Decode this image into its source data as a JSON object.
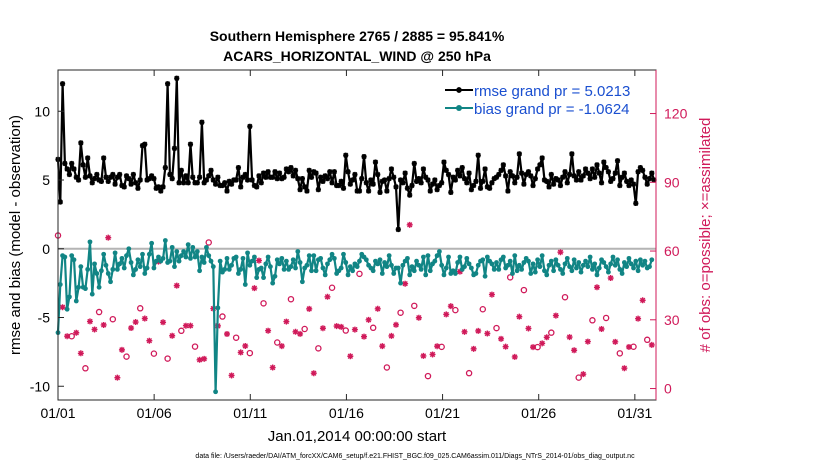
{
  "colors": {
    "rmse": "#000000",
    "bias": "#118585",
    "obs": "#d01a5a",
    "legend_text": "#1a4fd0",
    "zero_line": "#b4b4b4"
  },
  "chart_data": {
    "type": "line",
    "title_line1": "Southern Hemisphere 2765 / 2885 = 95.841%",
    "title_line2": "ACARS_HORIZONTAL_WIND @ 250 hPa",
    "xlabel": "Jan.01,2014 00:00:00 start",
    "ylabel_left": "rmse and bias (model - observation)",
    "ylabel_right": "# of obs: o=possible; ×=assimilated",
    "footnote": "data file: /Users/raeder/DAI/ATM_forcXX/CAM6_setup/f.e21.FHIST_BGC.f09_025.CAM6assim.011/Diags_NTrS_2014-01/obs_diag_output.nc",
    "xlim": [
      1,
      32.1
    ],
    "ylim_left": [
      -11,
      13
    ],
    "ylim_right": [
      -5,
      139
    ],
    "x_ticks": [
      1,
      6,
      11,
      16,
      21,
      26,
      31
    ],
    "x_tick_labels": [
      "01/01",
      "01/06",
      "01/11",
      "01/16",
      "01/21",
      "01/26",
      "01/31"
    ],
    "y_ticks_left": [
      -10,
      -5,
      0,
      5,
      10
    ],
    "y_tick_labels_left": [
      "-10",
      "-5",
      "0",
      "5",
      "10"
    ],
    "y_ticks_right": [
      0,
      30,
      60,
      90,
      120
    ],
    "y_tick_labels_right": [
      "0",
      "30",
      "60",
      "90",
      "120"
    ],
    "legend": {
      "placement": "top-right",
      "items": [
        "rmse grand pr = 5.0213",
        "bias grand pr = -1.0624"
      ]
    },
    "series": [
      {
        "name": "rmse grand pr = 5.0213",
        "axis": "left",
        "marker": "asterisk",
        "values": [
          6.5,
          3.4,
          12,
          6.2,
          5.8,
          5.4,
          6.2,
          5.8,
          5.2,
          5.0,
          7.7,
          6.1,
          5.2,
          6.6,
          5.3,
          4.8,
          5.1,
          5.4,
          5.0,
          4.9,
          6.6,
          5.2,
          4.9,
          5.2,
          5.4,
          4.7,
          5.2,
          5.4,
          4.6,
          4.5,
          5.3,
          5.1,
          4.7,
          5.4,
          4.8,
          4.4,
          5.0,
          7.5,
          7.6,
          5.0,
          5.1,
          5.3,
          5.1,
          4.4,
          4.5,
          4.2,
          4.5,
          5.9,
          12,
          5.4,
          5.1,
          7.3,
          12.4,
          4.8,
          5.7,
          4.8,
          5.3,
          4.8,
          7.6,
          5.2,
          4.8,
          4.8,
          5.2,
          9.2,
          4.8,
          5.0,
          5.3,
          5.7,
          5.0,
          4.7,
          5.2,
          4.6,
          4.6,
          4.8,
          4.2,
          4.9,
          4.7,
          5.0,
          5.0,
          5.9,
          4.5,
          5.2,
          5.4,
          5.0,
          8.9,
          5.0,
          4.6,
          4.5,
          5.3,
          4.8,
          5.5,
          5.2,
          5.6,
          5.2,
          5.2,
          5.6,
          5.1,
          5.5,
          5.1,
          5.2,
          5.8,
          5.6,
          5.9,
          5.3,
          5.7,
          5.1,
          4.3,
          5.1,
          4.5,
          4.2,
          5.7,
          5.2,
          5.6,
          5.5,
          4.3,
          5.2,
          4.9,
          5.3,
          5.1,
          5.6,
          4.8,
          5.6,
          4.6,
          4.6,
          4.9,
          4.4,
          6.8,
          5.6,
          4.7,
          5.0,
          5.4,
          4.2,
          4.2,
          5.1,
          6.7,
          4.8,
          4.2,
          5.0,
          4.7,
          6.3,
          5.4,
          4.1,
          4.9,
          5.0,
          4.2,
          5.1,
          5.8,
          5.2,
          4.5,
          1.4,
          5.0,
          4.8,
          5.5,
          4.4,
          3.9,
          4.6,
          6.2,
          4.9,
          5.1,
          4.8,
          5.8,
          5.2,
          5.0,
          4.2,
          4.7,
          5.0,
          4.3,
          4.6,
          4.8,
          6.3,
          5.7,
          5.4,
          4.1,
          5.2,
          5.0,
          5.7,
          5.3,
          5.9,
          5.1,
          4.8,
          5.5,
          4.3,
          4.6,
          4.9,
          6.8,
          4.4,
          4.9,
          5.8,
          4.5,
          4.4,
          4.8,
          5.1,
          5.2,
          5.4,
          5.7,
          6.1,
          5.3,
          4.2,
          5.6,
          5.3,
          4.8,
          5.2,
          6.9,
          5.5,
          4.7,
          5.4,
          5.6,
          5.3,
          4.6,
          5.1,
          5.8,
          6.1,
          6.6,
          5.0,
          4.9,
          4.5,
          5.4,
          4.7,
          5.1,
          5.0,
          4.6,
          5.2,
          5.6,
          4.8,
          5.4,
          6.9,
          5.3,
          5.0,
          5.6,
          5.0,
          5.3,
          5.8,
          5.5,
          5.1,
          5.8,
          5.2,
          6.1,
          5.5,
          4.8,
          6.3,
          5.9,
          5.6,
          4.9,
          5.1,
          5.5,
          6.4,
          4.6,
          5.2,
          5.5,
          4.9,
          4.6,
          5.0,
          4.7,
          3.3,
          5.6,
          5.9,
          5.7,
          5.2,
          4.7,
          5.1,
          5.5,
          5.0
        ]
      },
      {
        "name": "bias grand pr = -1.0624",
        "axis": "left",
        "marker": "dot",
        "values": [
          -6.1,
          -2.6,
          -0.5,
          -0.6,
          -4.4,
          -3.5,
          -0.5,
          -0.8,
          -3.8,
          -2.8,
          -1.3,
          -2.8,
          -2.9,
          -1.5,
          0.5,
          -3.3,
          -1.1,
          -1.8,
          -2.8,
          -1.6,
          -0.4,
          -1.2,
          -1.8,
          -2.4,
          -1.5,
          -0.3,
          -1.5,
          -1.1,
          -0.7,
          -1.4,
          -0.5,
          0,
          -1.0,
          -1.9,
          -1.5,
          -0.8,
          -1.3,
          -0.4,
          -1.8,
          -1.4,
          -0.4,
          0.4,
          -1.4,
          -0.9,
          -0.6,
          -0.9,
          -0.7,
          0.6,
          -1.0,
          -0.9,
          0.1,
          -1.3,
          -0.2,
          -0.9,
          -0.5,
          -0.2,
          -0.6,
          0.3,
          -0.7,
          0.1,
          -0.6,
          -0.2,
          -1.6,
          -0.6,
          -1.0,
          0.1,
          -0.5,
          -0.9,
          -1.3,
          -10.4,
          -4.3,
          -0.9,
          -1.7,
          -1.5,
          -0.7,
          -1.5,
          -1.2,
          -0.7,
          -0.6,
          -1.8,
          -1.5,
          -0.7,
          -2.6,
          -0.3,
          -1.2,
          -0.9,
          -0.6,
          -2.1,
          -1.5,
          -1.4,
          -2.1,
          -1.1,
          -0.6,
          -1.3,
          -2.5,
          -2.0,
          -0.8,
          -1.1,
          -0.7,
          -1.5,
          -0.9,
          -1.5,
          -1.3,
          -0.8,
          -1.4,
          -0.2,
          -1.0,
          -2.4,
          -1.4,
          -1.2,
          -0.5,
          -1.6,
          -0.5,
          -1.6,
          -0.8,
          -0.7,
          -1.4,
          -1.9,
          -1.1,
          -0.8,
          -0.4,
          -0.7,
          -1.8,
          -1.6,
          -1.4,
          -0.4,
          -1.0,
          -1.9,
          -1.3,
          -1.6,
          -1.1,
          -1.3,
          -0.9,
          -0.4,
          -0.6,
          -0.8,
          -1.2,
          -1.4,
          -1.6,
          -0.9,
          -1.1,
          -0.8,
          -1.8,
          -1.0,
          -1.3,
          -0.5,
          -1.2,
          -1.8,
          -1.4,
          -1.4,
          -2.5,
          -1.2,
          -0.9,
          -0.7,
          -1.9,
          -1.3,
          -1.6,
          -0.9,
          -1.2,
          -1.5,
          -0.6,
          -1.9,
          -0.5,
          -1.6,
          -1.1,
          -0.9,
          -0.5,
          -0.2,
          -1.2,
          -1.9,
          -1.4,
          -0.6,
          -1.8,
          -1.6,
          -1.8,
          -1.0,
          -0.6,
          -1.5,
          -1.3,
          -0.7,
          -1.1,
          -1.4,
          -1.9,
          -1.8,
          -1.2,
          -0.9,
          -0.8,
          -2.0,
          -0.6,
          -0.9,
          -1.1,
          -1.5,
          -1.0,
          -1.5,
          -0.8,
          -0.6,
          -1.4,
          -1.2,
          -0.9,
          -1.8,
          -0.5,
          -1.6,
          -1.2,
          -1.5,
          -1.0,
          -0.7,
          -0.9,
          -1.8,
          -1.1,
          -1.7,
          -0.8,
          -1.3,
          -0.5,
          -1.6,
          -1.9,
          -1.2,
          -0.9,
          -1.6,
          -0.8,
          -1.2,
          -1.5,
          -1.8,
          -1.1,
          -0.7,
          -1.3,
          -1.6,
          -0.8,
          -1.4,
          -1.0,
          -1.7,
          -1.2,
          -0.9,
          -1.3,
          -0.6,
          -1.5,
          -1.1,
          -1.9,
          -1.4,
          -0.8,
          -1.0,
          -1.3,
          -1.7,
          -1.1,
          -0.6,
          -1.2,
          -0.8,
          -1.5,
          -1.8,
          -1.0,
          -1.3,
          -0.7,
          -1.1,
          -1.4,
          -0.9,
          -1.6,
          -0.8,
          -1.2,
          -0.9,
          -1.4,
          -1.3,
          -0.8
        ]
      }
    ]
  }
}
